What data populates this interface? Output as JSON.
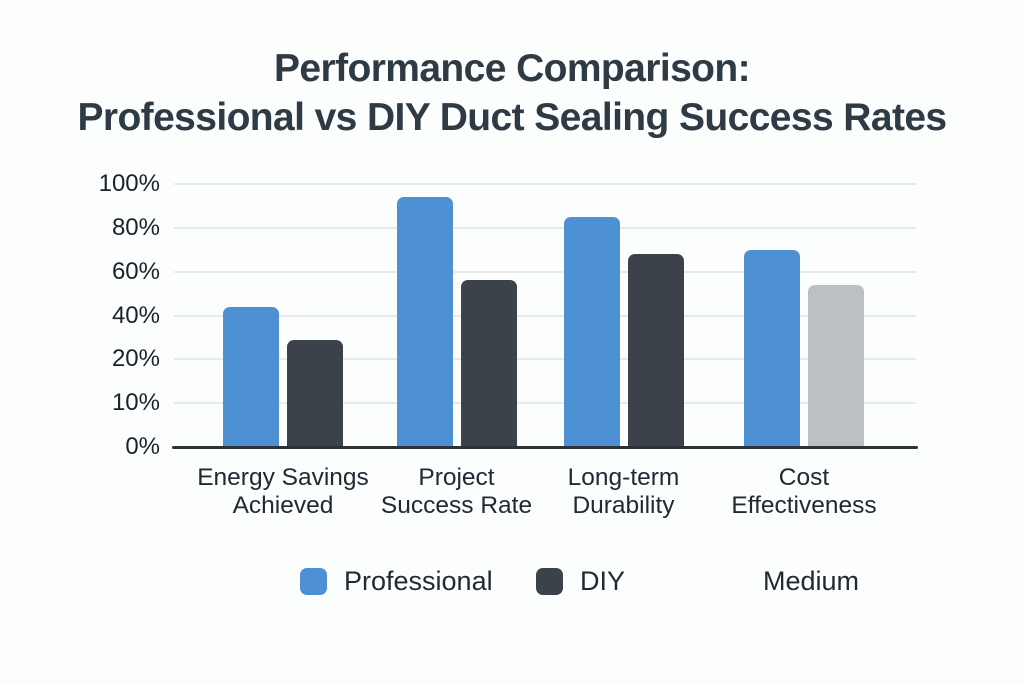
{
  "page": {
    "background": "#fcfdfd"
  },
  "title": {
    "line1": "Performance Comparison:",
    "line2": "Professional vs DIY Duct Sealing Success Rates",
    "color": "#2e3a44"
  },
  "chart_data": {
    "type": "bar",
    "title": "Performance Comparison: Professional vs DIY Duct Sealing Success Rates",
    "categories": [
      "Energy Savings Achieved",
      "Project Success Rate",
      "Long-term Durability",
      "Cost Effectiveness"
    ],
    "category_lines": [
      [
        "Energy Savings",
        "Achieved"
      ],
      [
        "Project",
        "Success Rate"
      ],
      [
        "Long-term",
        "Durability"
      ],
      [
        "Cost",
        "Effectiveness"
      ]
    ],
    "y_axis": {
      "tick_labels": [
        "0%",
        "10%",
        "20%",
        "40%",
        "60%",
        "80%",
        "100%"
      ],
      "tick_values": [
        0,
        10,
        20,
        40,
        60,
        80,
        100
      ],
      "note": "ticks evenly spaced although values are non-linear",
      "range": [
        0,
        100
      ]
    },
    "series": [
      {
        "name": "Professional",
        "color": "#4d90d4",
        "values": [
          44,
          94,
          85,
          70
        ]
      },
      {
        "name": "DIY",
        "color": "#3b424a",
        "values": [
          29,
          56,
          68,
          54
        ],
        "bar_colors": [
          "#3b424a",
          "#3b424a",
          "#3b424a",
          "#bdc0c2"
        ]
      }
    ],
    "legend": {
      "position": "bottom",
      "entries": [
        {
          "label": "Professional",
          "swatch": "#4d90d4"
        },
        {
          "label": "DIY",
          "swatch": "#3b424a"
        },
        {
          "label": "Medium",
          "swatch": null
        }
      ]
    },
    "grid": true,
    "colors": {
      "gridline": "#e7eaec",
      "axis_line": "#2b323a",
      "tick_text": "#1a222b",
      "label_text": "#212a33"
    }
  }
}
